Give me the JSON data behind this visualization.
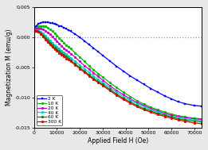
{
  "title": "",
  "xlabel": "Applied Field H (Oe)",
  "ylabel": "Magnetization M (emu/g)",
  "xlim": [
    0,
    73000
  ],
  "ylim": [
    -0.015,
    0.005
  ],
  "yticks": [
    -0.015,
    -0.01,
    -0.005,
    0.0,
    0.005
  ],
  "xticks": [
    0,
    10000,
    20000,
    30000,
    40000,
    50000,
    60000,
    70000
  ],
  "xticklabels": [
    "0",
    "10000",
    "20000",
    "30000",
    "40000",
    "50000",
    "60000",
    "70000"
  ],
  "yticklabels": [
    "-0,015",
    "-0,010",
    "-0,005",
    "0,000",
    "0,005"
  ],
  "background_color": "#e8e8e8",
  "plot_bg": "#ffffff",
  "series": [
    {
      "label": "2 K",
      "color": "#0000ff",
      "marker": "s",
      "H": [
        500,
        1000,
        2000,
        3000,
        4000,
        5000,
        6000,
        7000,
        8000,
        9000,
        10000,
        11000,
        12000,
        13000,
        14000,
        15000,
        16000,
        18000,
        20000,
        22000,
        24000,
        26000,
        28000,
        30000,
        33000,
        36000,
        39000,
        42000,
        45000,
        48000,
        51000,
        54000,
        57000,
        60000,
        63000,
        66000,
        70000,
        73000
      ],
      "M": [
        0.0017,
        0.0019,
        0.0022,
        0.0024,
        0.0025,
        0.0025,
        0.0025,
        0.0024,
        0.0023,
        0.0022,
        0.0021,
        0.0019,
        0.0018,
        0.0016,
        0.0014,
        0.0012,
        0.001,
        0.0005,
        0.0,
        -0.0006,
        -0.0012,
        -0.0018,
        -0.0024,
        -0.003,
        -0.0039,
        -0.0048,
        -0.0056,
        -0.0064,
        -0.0071,
        -0.0078,
        -0.0085,
        -0.0091,
        -0.0097,
        -0.0102,
        -0.0107,
        -0.011,
        -0.0113,
        -0.0114
      ]
    },
    {
      "label": "10 K",
      "color": "#00bb00",
      "marker": "o",
      "H": [
        500,
        1000,
        2000,
        3000,
        4000,
        5000,
        6000,
        7000,
        8000,
        9000,
        10000,
        11000,
        12000,
        13000,
        14000,
        15000,
        16000,
        18000,
        20000,
        22000,
        24000,
        26000,
        28000,
        30000,
        33000,
        36000,
        39000,
        42000,
        45000,
        48000,
        51000,
        54000,
        57000,
        60000,
        63000,
        66000,
        70000,
        73000
      ],
      "M": [
        0.0014,
        0.0016,
        0.0018,
        0.0019,
        0.0019,
        0.0018,
        0.0016,
        0.0013,
        0.001,
        0.0007,
        0.0003,
        -0.0001,
        -0.0005,
        -0.0009,
        -0.0013,
        -0.0016,
        -0.0019,
        -0.0026,
        -0.0033,
        -0.004,
        -0.0047,
        -0.0054,
        -0.006,
        -0.0066,
        -0.0075,
        -0.0083,
        -0.0091,
        -0.0098,
        -0.0105,
        -0.0111,
        -0.0116,
        -0.012,
        -0.0124,
        -0.0127,
        -0.013,
        -0.0132,
        -0.0134,
        -0.0135
      ]
    },
    {
      "label": "20 K",
      "color": "#cc00cc",
      "marker": "o",
      "H": [
        500,
        1000,
        2000,
        3000,
        4000,
        5000,
        6000,
        7000,
        8000,
        9000,
        10000,
        11000,
        12000,
        13000,
        14000,
        15000,
        16000,
        18000,
        20000,
        22000,
        24000,
        26000,
        28000,
        30000,
        33000,
        36000,
        39000,
        42000,
        45000,
        48000,
        51000,
        54000,
        57000,
        60000,
        63000,
        66000,
        70000,
        73000
      ],
      "M": [
        0.0013,
        0.0014,
        0.0015,
        0.0015,
        0.0013,
        0.0011,
        0.0008,
        0.0005,
        0.0001,
        -0.0003,
        -0.0007,
        -0.001,
        -0.0014,
        -0.0018,
        -0.0021,
        -0.0024,
        -0.0027,
        -0.0033,
        -0.004,
        -0.0047,
        -0.0053,
        -0.0059,
        -0.0065,
        -0.0071,
        -0.008,
        -0.0088,
        -0.0095,
        -0.0102,
        -0.0108,
        -0.0113,
        -0.0118,
        -0.0122,
        -0.0126,
        -0.0129,
        -0.0131,
        -0.0133,
        -0.0135,
        -0.0136
      ]
    },
    {
      "label": "40 K",
      "color": "#00cccc",
      "marker": "o",
      "H": [
        500,
        1000,
        2000,
        3000,
        4000,
        5000,
        6000,
        7000,
        8000,
        9000,
        10000,
        11000,
        12000,
        13000,
        14000,
        15000,
        16000,
        18000,
        20000,
        22000,
        24000,
        26000,
        28000,
        30000,
        33000,
        36000,
        39000,
        42000,
        45000,
        48000,
        51000,
        54000,
        57000,
        60000,
        63000,
        66000,
        70000,
        73000
      ],
      "M": [
        0.0011,
        0.0012,
        0.0011,
        0.0009,
        0.0006,
        0.0003,
        -0.0001,
        -0.0005,
        -0.0009,
        -0.0013,
        -0.0016,
        -0.0019,
        -0.0022,
        -0.0025,
        -0.0028,
        -0.0031,
        -0.0034,
        -0.004,
        -0.0046,
        -0.0052,
        -0.0058,
        -0.0064,
        -0.007,
        -0.0075,
        -0.0083,
        -0.0091,
        -0.0098,
        -0.0104,
        -0.011,
        -0.0115,
        -0.012,
        -0.0124,
        -0.0128,
        -0.0131,
        -0.0133,
        -0.0135,
        -0.0137,
        -0.0138
      ]
    },
    {
      "label": "60 K",
      "color": "#008800",
      "marker": "o",
      "H": [
        500,
        1000,
        2000,
        3000,
        4000,
        5000,
        6000,
        7000,
        8000,
        9000,
        10000,
        11000,
        12000,
        13000,
        14000,
        15000,
        16000,
        18000,
        20000,
        22000,
        24000,
        26000,
        28000,
        30000,
        33000,
        36000,
        39000,
        42000,
        45000,
        48000,
        51000,
        54000,
        57000,
        60000,
        63000,
        66000,
        70000,
        73000
      ],
      "M": [
        0.001,
        0.0011,
        0.0009,
        0.0007,
        0.0003,
        -0.0001,
        -0.0005,
        -0.0009,
        -0.0013,
        -0.0017,
        -0.002,
        -0.0023,
        -0.0026,
        -0.0029,
        -0.0032,
        -0.0035,
        -0.0038,
        -0.0044,
        -0.005,
        -0.0056,
        -0.0062,
        -0.0068,
        -0.0073,
        -0.0078,
        -0.0086,
        -0.0094,
        -0.0101,
        -0.0107,
        -0.0113,
        -0.0118,
        -0.0122,
        -0.0126,
        -0.0129,
        -0.0132,
        -0.0135,
        -0.0137,
        -0.0139,
        -0.014
      ]
    },
    {
      "label": "300 K",
      "color": "#dd0000",
      "marker": "o",
      "H": [
        500,
        1000,
        2000,
        3000,
        4000,
        5000,
        6000,
        7000,
        8000,
        9000,
        10000,
        11000,
        12000,
        13000,
        14000,
        15000,
        16000,
        18000,
        20000,
        22000,
        24000,
        26000,
        28000,
        30000,
        33000,
        36000,
        39000,
        42000,
        45000,
        48000,
        51000,
        54000,
        57000,
        60000,
        63000,
        66000,
        70000,
        73000
      ],
      "M": [
        0.001,
        0.0011,
        0.0009,
        0.0005,
        0.0001,
        -0.0004,
        -0.0008,
        -0.0012,
        -0.0016,
        -0.002,
        -0.0023,
        -0.0026,
        -0.0029,
        -0.0032,
        -0.0035,
        -0.0037,
        -0.004,
        -0.0046,
        -0.0052,
        -0.0058,
        -0.0064,
        -0.007,
        -0.0075,
        -0.008,
        -0.0088,
        -0.0096,
        -0.0103,
        -0.0109,
        -0.0115,
        -0.012,
        -0.0124,
        -0.0128,
        -0.0131,
        -0.0134,
        -0.0137,
        -0.0139,
        -0.0142,
        -0.0143
      ]
    }
  ]
}
